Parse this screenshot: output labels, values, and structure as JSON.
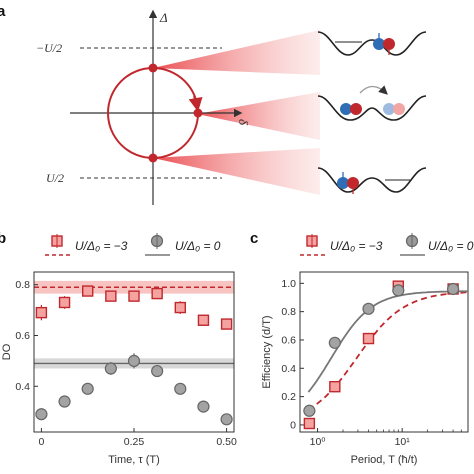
{
  "panel_a": {
    "letter": "a",
    "y_axis_label": "Δ",
    "x_axis_label": "δ",
    "upper_line_label": "−U/2",
    "lower_line_label": "U/2"
  },
  "colors": {
    "red": "#c0282d",
    "red_light": "#f4a3a0",
    "gray": "#7a7a7a",
    "gray_band": "#d8d8d8",
    "red_band": "#f7c4c2",
    "blue": "#2f6db5"
  },
  "chart_data": [
    {
      "panel": "b",
      "type": "scatter",
      "letter": "b",
      "legend": [
        {
          "label": "U/Δ₀ = −3",
          "marker": "square",
          "color": "#c0282d"
        },
        {
          "label": "U/Δ₀ = 0",
          "marker": "circle",
          "color": "#7a7a7a"
        }
      ],
      "xlabel": "Time, τ (T)",
      "ylabel": "DO",
      "xlim": [
        -0.02,
        0.52
      ],
      "ylim": [
        0.22,
        0.85
      ],
      "xticks": [
        0,
        0.25,
        0.5
      ],
      "xtick_labels": [
        "0",
        "0.25",
        "0.50"
      ],
      "yticks": [
        0.4,
        0.6,
        0.8
      ],
      "ytick_labels": [
        "0.4",
        "0.6",
        "0.8"
      ],
      "series": [
        {
          "name": "U/Δ₀ = −3",
          "marker": "square",
          "x": [
            0,
            0.0625,
            0.125,
            0.1875,
            0.25,
            0.3125,
            0.375,
            0.4375,
            0.5
          ],
          "y": [
            0.69,
            0.73,
            0.775,
            0.755,
            0.755,
            0.765,
            0.71,
            0.66,
            0.645
          ],
          "err": [
            0.03,
            0.025,
            0.02,
            0.02,
            0.02,
            0.02,
            0.025,
            0.015,
            0.015
          ],
          "reference": 0.79,
          "reference_band": [
            0.765,
            0.815
          ]
        },
        {
          "name": "U/Δ₀ = 0",
          "marker": "circle",
          "x": [
            0,
            0.0625,
            0.125,
            0.1875,
            0.25,
            0.3125,
            0.375,
            0.4375,
            0.5
          ],
          "y": [
            0.29,
            0.34,
            0.39,
            0.47,
            0.5,
            0.46,
            0.39,
            0.32,
            0.27
          ],
          "err": [
            0.02,
            0.02,
            0.02,
            0.025,
            0.03,
            0.02,
            0.02,
            0.02,
            0.02
          ],
          "reference": 0.49,
          "reference_band": [
            0.47,
            0.51
          ]
        }
      ]
    },
    {
      "panel": "c",
      "type": "scatter",
      "letter": "c",
      "legend": [
        {
          "label": "U/Δ₀ = −3",
          "marker": "square",
          "color": "#c0282d"
        },
        {
          "label": "U/Δ₀ = 0",
          "marker": "circle",
          "color": "#7a7a7a"
        }
      ],
      "xlabel": "Period, T (ħ/t)",
      "ylabel": "Efficiency (d/T)",
      "xscale": "log",
      "xlim": [
        0.62,
        60
      ],
      "ylim": [
        -0.05,
        1.08
      ],
      "xticks": [
        1,
        10
      ],
      "xtick_labels": [
        "10⁰",
        "10¹"
      ],
      "yticks": [
        0,
        0.2,
        0.4,
        0.6,
        0.8,
        1.0
      ],
      "ytick_labels": [
        "0",
        "0.2",
        "0.4",
        "0.6",
        "0.8",
        "1.0"
      ],
      "series": [
        {
          "name": "U/Δ₀ = −3",
          "marker": "square",
          "x": [
            0.8,
            1.6,
            4,
            9,
            40
          ],
          "y": [
            0.01,
            0.27,
            0.61,
            0.98,
            0.96
          ],
          "err": [
            0.03,
            0.04,
            0.04,
            0.04,
            0.03
          ],
          "curve": "dashed"
        },
        {
          "name": "U/Δ₀ = 0",
          "marker": "circle",
          "x": [
            0.8,
            1.6,
            4,
            9,
            40
          ],
          "y": [
            0.1,
            0.58,
            0.82,
            0.95,
            0.96
          ],
          "err": [
            0.04,
            0.04,
            0.04,
            0.04,
            0.03
          ],
          "curve": "solid"
        }
      ]
    }
  ]
}
